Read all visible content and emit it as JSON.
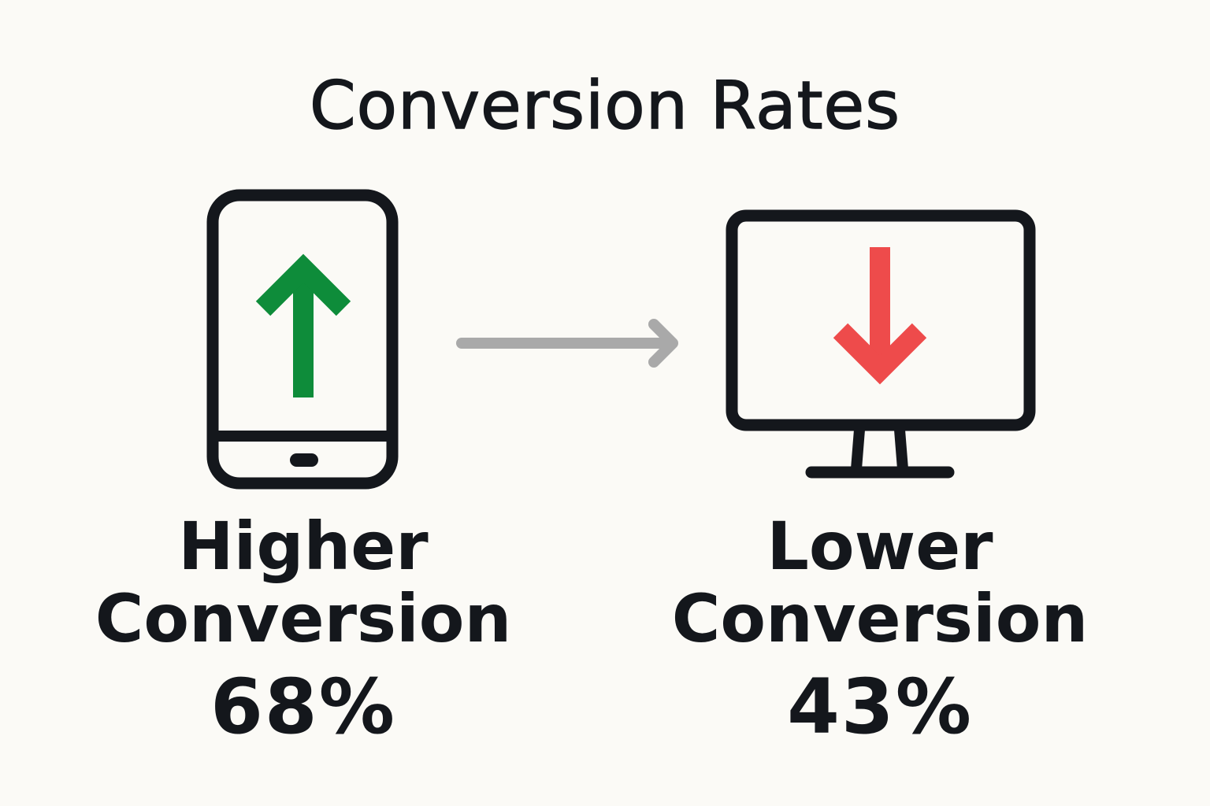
{
  "title": "Conversion Rates",
  "colors": {
    "outline": "#14171c",
    "up_arrow": "#0e8c3a",
    "down_arrow": "#ee4b4b",
    "connector": "#a9a9a9",
    "background": "#fbfaf6"
  },
  "mobile": {
    "icon": "smartphone-icon",
    "arrow_icon": "arrow-up-icon",
    "label_line1": "Higher",
    "label_line2": "Conversion",
    "value": "68%"
  },
  "desktop": {
    "icon": "desktop-monitor-icon",
    "arrow_icon": "arrow-down-icon",
    "label_line1": "Lower",
    "label_line2": "Conversion",
    "value": "43%"
  },
  "connector_icon": "arrow-right-icon"
}
